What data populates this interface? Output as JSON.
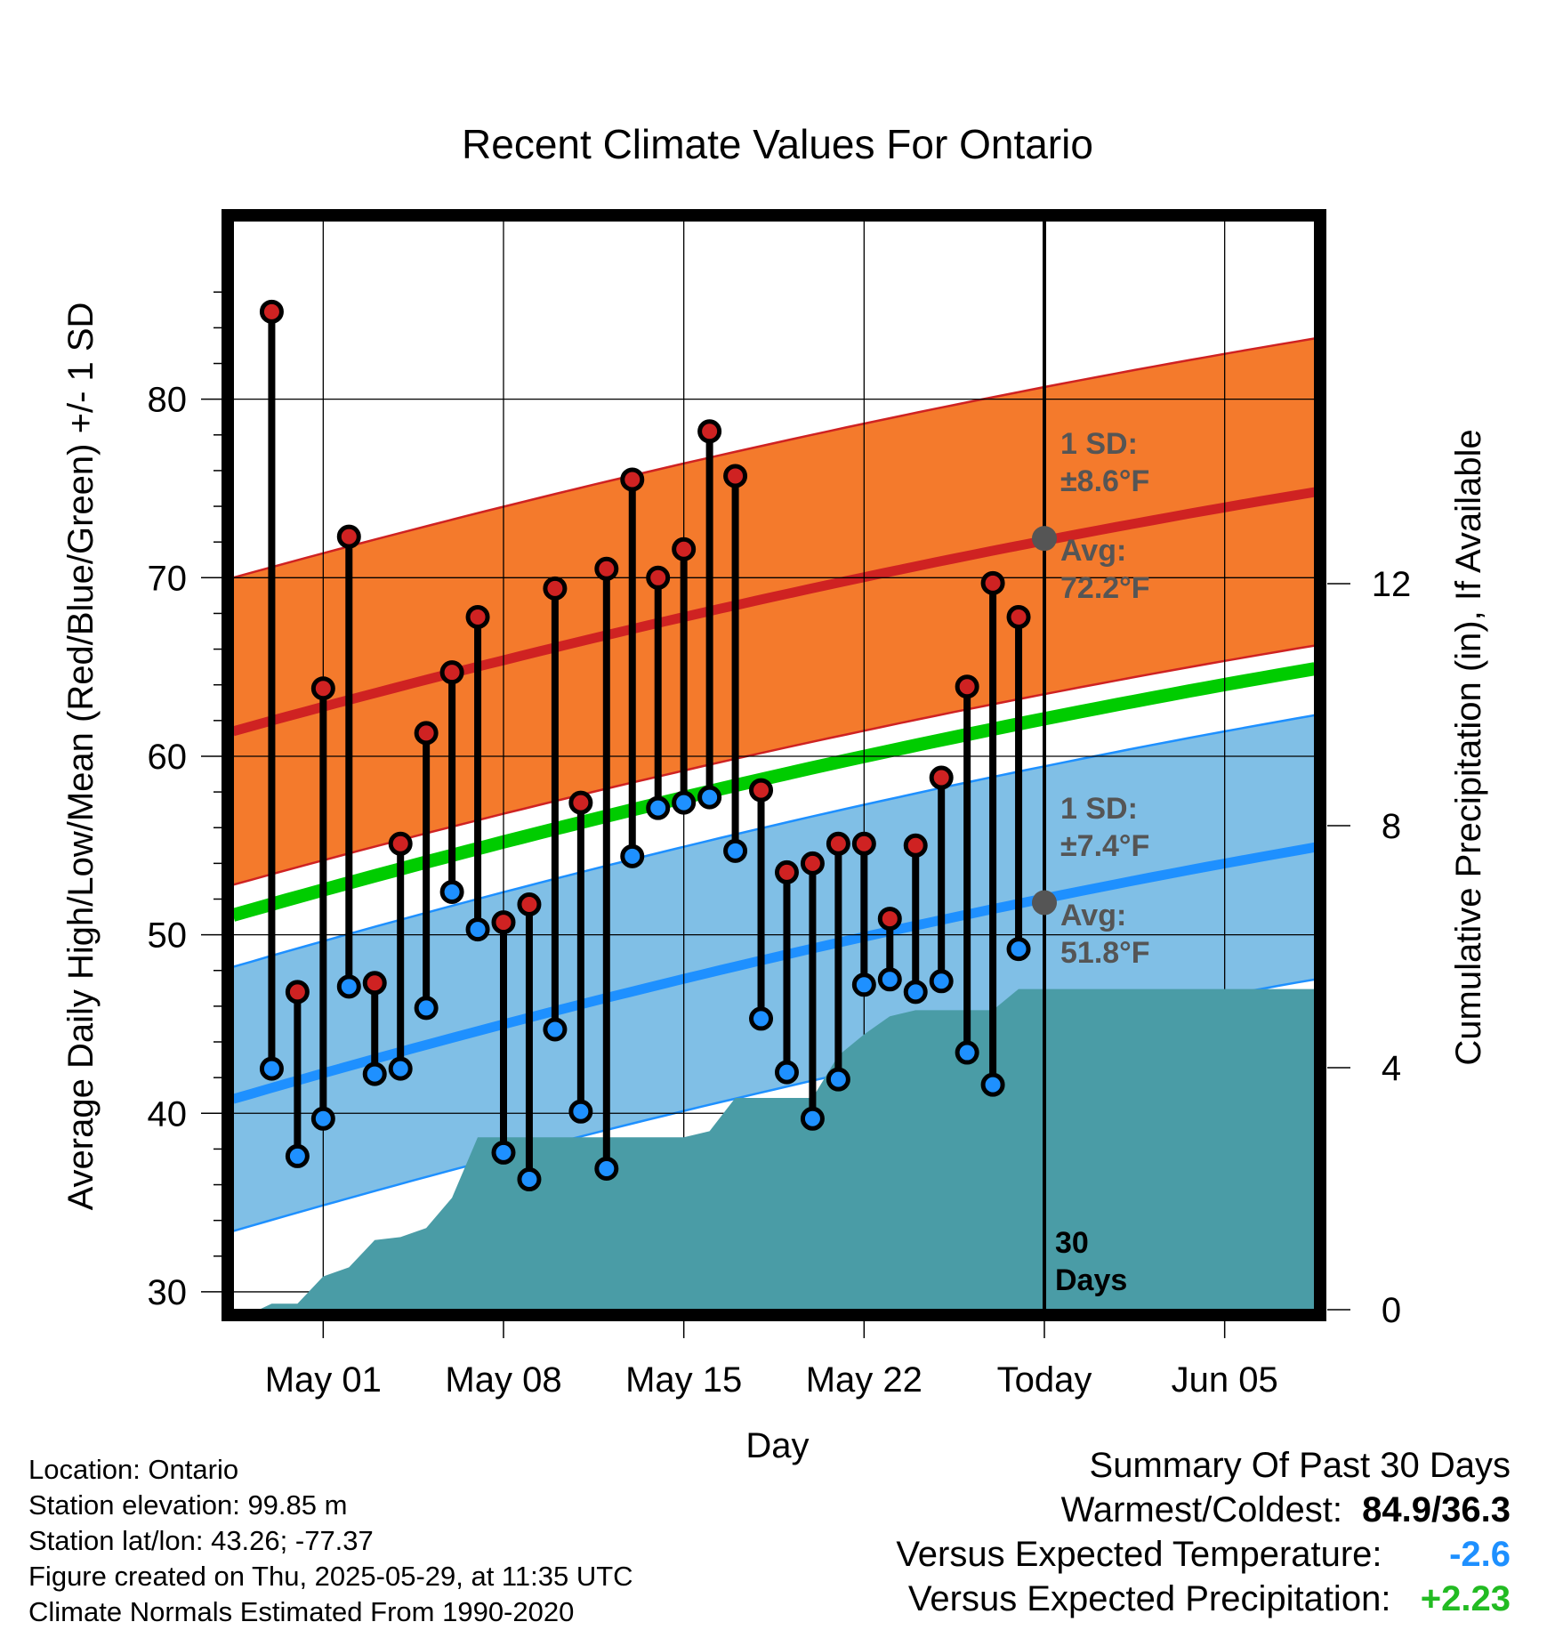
{
  "chart_data": {
    "type": "line",
    "title": "Recent Climate Values For Ontario",
    "xlabel": "Day",
    "ylabel": "Average Daily High/Low/Mean (Red/Blue/Green) +/- 1 SD",
    "y2label": "Cumulative Precipitation (in), If Available",
    "x_start_date": "Apr 28",
    "xlim": [
      -0.5,
      41.5
    ],
    "ylim": [
      29,
      90
    ],
    "y2lim": [
      0,
      18
    ],
    "x_ticks": [
      {
        "x": 3,
        "label": "May 01"
      },
      {
        "x": 10,
        "label": "May 08"
      },
      {
        "x": 17,
        "label": "May 15"
      },
      {
        "x": 24,
        "label": "May 22"
      },
      {
        "x": 31,
        "label": "Today"
      },
      {
        "x": 38,
        "label": "Jun 05"
      }
    ],
    "y_ticks": [
      30,
      40,
      50,
      60,
      70,
      80
    ],
    "y2_ticks": [
      0,
      4,
      8,
      12
    ],
    "today_x": 31,
    "today_label": "30\nDays",
    "normals": {
      "high_avg_start": 61.4,
      "high_avg_end": 74.8,
      "high_sd": 8.6,
      "low_avg_start": 40.8,
      "low_avg_end": 54.9,
      "low_sd": 7.4,
      "mean_start": 51.1,
      "mean_end": 64.9
    },
    "annotations": {
      "high_sd_label": "1 SD:",
      "high_sd_value": "±8.6°F",
      "high_avg_label": "Avg:",
      "high_avg_value": "72.2°F",
      "high_avg_point": 72.2,
      "low_sd_label": "1 SD:",
      "low_sd_value": "±7.4°F",
      "low_avg_label": "Avg:",
      "low_avg_value": "51.8°F",
      "low_avg_point": 51.8
    },
    "daily": [
      {
        "x": 1,
        "high": 84.9,
        "low": 42.5
      },
      {
        "x": 2,
        "high": 46.8,
        "low": 37.6
      },
      {
        "x": 3,
        "high": 63.8,
        "low": 39.7
      },
      {
        "x": 4,
        "high": 72.3,
        "low": 47.1
      },
      {
        "x": 5,
        "high": 47.3,
        "low": 42.2
      },
      {
        "x": 6,
        "high": 55.1,
        "low": 42.5
      },
      {
        "x": 7,
        "high": 61.3,
        "low": 45.9
      },
      {
        "x": 8,
        "high": 64.7,
        "low": 52.4
      },
      {
        "x": 9,
        "high": 67.8,
        "low": 50.3
      },
      {
        "x": 10,
        "high": 50.7,
        "low": 37.8
      },
      {
        "x": 11,
        "high": 51.7,
        "low": 36.3
      },
      {
        "x": 12,
        "high": 69.4,
        "low": 44.7
      },
      {
        "x": 13,
        "high": 57.4,
        "low": 40.1
      },
      {
        "x": 14,
        "high": 70.5,
        "low": 36.9
      },
      {
        "x": 15,
        "high": 75.5,
        "low": 54.4
      },
      {
        "x": 16,
        "high": 70.0,
        "low": 57.1
      },
      {
        "x": 17,
        "high": 71.6,
        "low": 57.4
      },
      {
        "x": 18,
        "high": 78.2,
        "low": 57.7
      },
      {
        "x": 19,
        "high": 75.7,
        "low": 54.7
      },
      {
        "x": 20,
        "high": 58.1,
        "low": 45.3
      },
      {
        "x": 21,
        "high": 53.5,
        "low": 42.3
      },
      {
        "x": 22,
        "high": 54.0,
        "low": 39.7
      },
      {
        "x": 23,
        "high": 55.1,
        "low": 41.9
      },
      {
        "x": 24,
        "high": 55.1,
        "low": 47.2
      },
      {
        "x": 25,
        "high": 50.9,
        "low": 47.5
      },
      {
        "x": 26,
        "high": 55.0,
        "low": 46.8
      },
      {
        "x": 27,
        "high": 58.8,
        "low": 47.4
      },
      {
        "x": 28,
        "high": 63.9,
        "low": 43.4
      },
      {
        "x": 29,
        "high": 69.7,
        "low": 41.6
      },
      {
        "x": 30,
        "high": 67.8,
        "low": 49.2
      }
    ],
    "precip_cumulative": [
      {
        "x": 0,
        "v": 0.0
      },
      {
        "x": 0.5,
        "v": 0.0
      },
      {
        "x": 1,
        "v": 0.1
      },
      {
        "x": 2,
        "v": 0.1
      },
      {
        "x": 3,
        "v": 0.55
      },
      {
        "x": 4,
        "v": 0.7
      },
      {
        "x": 5,
        "v": 1.15
      },
      {
        "x": 6,
        "v": 1.2
      },
      {
        "x": 7,
        "v": 1.35
      },
      {
        "x": 8,
        "v": 1.85
      },
      {
        "x": 9,
        "v": 2.85
      },
      {
        "x": 10,
        "v": 2.85
      },
      {
        "x": 11,
        "v": 2.85
      },
      {
        "x": 17,
        "v": 2.85
      },
      {
        "x": 18,
        "v": 2.95
      },
      {
        "x": 19,
        "v": 3.5
      },
      {
        "x": 22,
        "v": 3.5
      },
      {
        "x": 23,
        "v": 4.2
      },
      {
        "x": 24,
        "v": 4.55
      },
      {
        "x": 25,
        "v": 4.85
      },
      {
        "x": 26,
        "v": 4.95
      },
      {
        "x": 29,
        "v": 4.95
      },
      {
        "x": 30,
        "v": 5.3
      },
      {
        "x": 41.5,
        "v": 5.3
      }
    ],
    "colors": {
      "high_band": "#f47a2c",
      "high_line": "#cf2222",
      "low_band": "#80bfe6",
      "low_line": "#1e90ff",
      "mean_line": "#00cc00",
      "precip": "#4a9ca6",
      "marker_high": "#cf2222",
      "marker_low": "#1e90ff",
      "annotation": "#555555"
    }
  },
  "footer": {
    "location": "Location: Ontario",
    "elevation": "Station elevation: 99.85 m",
    "latlon": "Station lat/lon: 43.26; -77.37",
    "created": "Figure created on Thu, 2025-05-29, at 11:35 UTC",
    "normals": "Climate Normals Estimated From 1990-2020"
  },
  "summary": {
    "title": "Summary Of Past 30 Days",
    "warm_cold_label": "Warmest/Coldest:",
    "warm_cold_value": "84.9/36.3",
    "temp_label": "Versus Expected Temperature:",
    "temp_value": "-2.6",
    "temp_color": "#1e90ff",
    "precip_label": "Versus Expected Precipitation:",
    "precip_value": "+2.23",
    "precip_color": "#22bb22"
  }
}
